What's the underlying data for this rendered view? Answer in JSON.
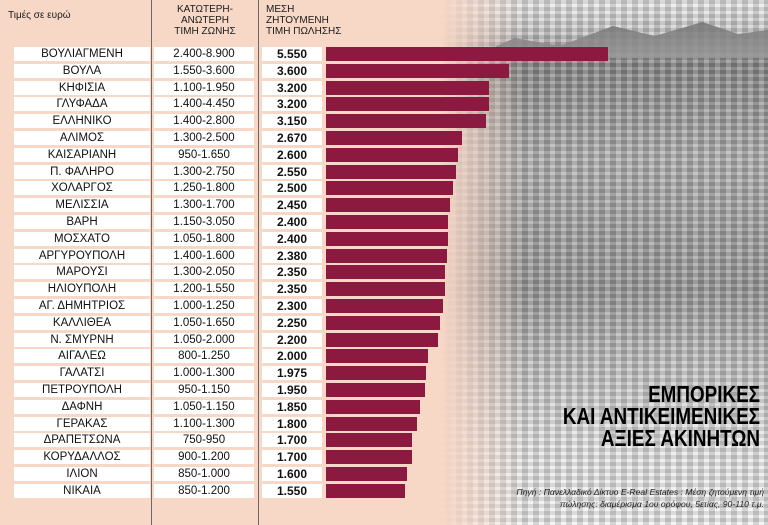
{
  "header": {
    "unit_label": "Τιμές σε ευρώ",
    "range_header": [
      "ΚΑΤΩΤΕΡΗ-",
      "ΑΝΩΤΕΡΗ",
      "ΤΙΜΗ ΖΩΝΗΣ"
    ],
    "price_header": [
      "ΜΕΣΗ",
      "ΖΗΤΟΥΜΕΝΗ",
      "ΤΙΜΗ ΠΩΛΗΣΗΣ"
    ]
  },
  "title_lines": [
    "ΕΜΠΟΡΙΚΕΣ",
    "ΚΑΙ ΑΝΤΙΚΕΙΜΕΝΙΚΕΣ",
    "ΑΞΙΕΣ ΑΚΙΝΗΤΩΝ"
  ],
  "source_lines": [
    "Πηγή : Πανελλαδικό Δίκτυο E-Real Estates : Μέση ζητούμενη τιμή",
    "πώλησης: διαμέρισμα 1ου ορόφου, 5ετίας, 90-110 τ.μ."
  ],
  "colors": {
    "bar": "#8c1a40",
    "background": "#f7d7c6"
  },
  "chart_data": {
    "type": "bar",
    "orientation": "horizontal",
    "categories": [
      "ΒΟΥΛΙΑΓΜΕΝΗ",
      "ΒΟΥΛΑ",
      "ΚΗΦΙΣΙΑ",
      "ΓΛΥΦΑΔΑ",
      "ΕΛΛΗΝΙΚΟ",
      "ΑΛΙΜΟΣ",
      "ΚΑΙΣΑΡΙΑΝΗ",
      "Π. ΦΑΛΗΡΟ",
      "ΧΟΛΑΡΓΟΣ",
      "ΜΕΛΙΣΣΙΑ",
      "ΒΑΡΗ",
      "ΜΟΣΧΑΤΟ",
      "ΑΡΓΥΡΟΥΠΟΛΗ",
      "ΜΑΡΟΥΣΙ",
      "ΗΛΙΟΥΠΟΛΗ",
      "ΑΓ. ΔΗΜΗΤΡΙΟΣ",
      "ΚΑΛΛΙΘΕΑ",
      "Ν. ΣΜΥΡΝΗ",
      "ΑΙΓΑΛΕΩ",
      "ΓΑΛΑΤΣΙ",
      "ΠΕΤΡΟΥΠΟΛΗ",
      "ΔΑΦΝΗ",
      "ΓΕΡΑΚΑΣ",
      "ΔΡΑΠΕΤΣΩΝΑ",
      "ΚΟΡΥΔΑΛΛΟΣ",
      "ΙΛΙΟΝ",
      "ΝΙΚΑΙΑ"
    ],
    "ranges": [
      "2.400-8.900",
      "1.550-3.600",
      "1.100-1.950",
      "1.400-4.450",
      "1.400-2.800",
      "1.300-2.500",
      "950-1.650",
      "1.300-2.750",
      "1.250-1.800",
      "1.300-1.700",
      "1.150-3.050",
      "1.050-1.800",
      "1.400-1.600",
      "1.300-2.050",
      "1.200-1.550",
      "1.000-1.250",
      "1.050-1.650",
      "1.050-2.000",
      "800-1.250",
      "1.000-1.300",
      "950-1.150",
      "1.050-1.150",
      "1.100-1.300",
      "750-950",
      "900-1.200",
      "850-1.000",
      "850-1.200"
    ],
    "value_labels": [
      "5.550",
      "3.600",
      "3.200",
      "3.200",
      "3.150",
      "2.670",
      "2.600",
      "2.550",
      "2.500",
      "2.450",
      "2.400",
      "2.400",
      "2.380",
      "2.350",
      "2.350",
      "2.300",
      "2.250",
      "2.200",
      "2.000",
      "1.975",
      "1.950",
      "1.850",
      "1.800",
      "1.700",
      "1.700",
      "1.600",
      "1.550"
    ],
    "values": [
      5550,
      3600,
      3200,
      3200,
      3150,
      2670,
      2600,
      2550,
      2500,
      2450,
      2400,
      2400,
      2380,
      2350,
      2350,
      2300,
      2250,
      2200,
      2000,
      1975,
      1950,
      1850,
      1800,
      1700,
      1700,
      1600,
      1550
    ]
  }
}
